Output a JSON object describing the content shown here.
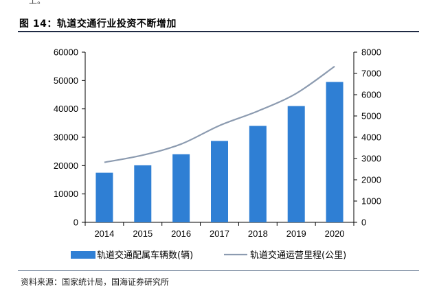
{
  "header": {
    "prev_text_fragment": "上。",
    "figure_title": "图 14：轨道交通行业投资不断增加"
  },
  "footer": {
    "source": "资料来源：国家统计局，国海证券研究所"
  },
  "colors": {
    "bar": "#2f7fd4",
    "line": "#8c9bb0",
    "title_rule": "#1f2a44",
    "axis": "#000000"
  },
  "chart_data": {
    "type": "bar",
    "categories": [
      "2014",
      "2015",
      "2016",
      "2017",
      "2018",
      "2019",
      "2020"
    ],
    "series": [
      {
        "name": "轨道交通配属车辆数(辆)",
        "type": "bar",
        "axis": "left",
        "values": [
          17500,
          20100,
          24000,
          28700,
          34000,
          41000,
          49500
        ]
      },
      {
        "name": "轨道交通运营里程(公里)",
        "type": "line",
        "axis": "right",
        "values": [
          2820,
          3160,
          3680,
          4550,
          5230,
          6060,
          7330
        ]
      }
    ],
    "y_left": {
      "ylim": [
        0,
        60000
      ],
      "ticks": [
        "0",
        "10000",
        "20000",
        "30000",
        "40000",
        "50000",
        "60000"
      ]
    },
    "y_right": {
      "ylim": [
        0,
        8000
      ],
      "ticks": [
        "0",
        "1000",
        "2000",
        "3000",
        "4000",
        "5000",
        "6000",
        "7000",
        "8000"
      ]
    },
    "grid": false,
    "legend_position": "bottom"
  }
}
